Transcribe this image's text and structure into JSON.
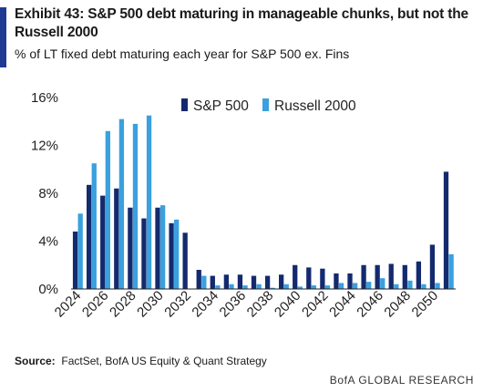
{
  "header": {
    "title": "Exhibit 43: S&P 500 debt maturing in manageable chunks, but not the Russell 2000",
    "subtitle": "% of LT fixed debt maturing each year for S&P 500 ex. Fins"
  },
  "footer": {
    "source_label": "Source:",
    "source_text": "FactSet, BofA US Equity & Quant Strategy",
    "brand": "BofA GLOBAL RESEARCH"
  },
  "colors": {
    "sp500": "#142a6e",
    "russell": "#3aa0de",
    "accent": "#1f3a93"
  },
  "chart_data": {
    "type": "bar",
    "categories": [
      "2024",
      "2025",
      "2026",
      "2027",
      "2028",
      "2029",
      "2030",
      "2031",
      "2032",
      "2033",
      "2034",
      "2035",
      "2036",
      "2037",
      "2038",
      "2039",
      "2040",
      "2041",
      "2042",
      "2043",
      "2044",
      "2045",
      "2046",
      "2047",
      "2048",
      "2049",
      "2050",
      "2051"
    ],
    "x_tick_labels": [
      "2024",
      "2026",
      "2028",
      "2030",
      "2032",
      "2034",
      "2036",
      "2038",
      "2040",
      "2042",
      "2044",
      "2046",
      "2048",
      "2050"
    ],
    "series": [
      {
        "name": "S&P 500",
        "color": "#142a6e",
        "values": [
          4.8,
          8.7,
          7.8,
          8.4,
          6.8,
          5.9,
          6.8,
          5.5,
          4.7,
          1.6,
          1.1,
          1.2,
          1.2,
          1.1,
          1.1,
          1.2,
          2.0,
          1.8,
          1.7,
          1.3,
          1.3,
          2.0,
          2.0,
          2.1,
          2.0,
          2.3,
          3.7,
          9.8
        ]
      },
      {
        "name": "Russell 2000",
        "color": "#3aa0de",
        "values": [
          6.3,
          10.5,
          13.2,
          14.2,
          13.8,
          14.5,
          7.0,
          5.8,
          0.0,
          1.1,
          0.3,
          0.4,
          0.3,
          0.4,
          0.1,
          0.4,
          0.2,
          0.3,
          0.3,
          0.5,
          0.5,
          0.6,
          0.9,
          0.4,
          0.7,
          0.4,
          0.5,
          2.9
        ]
      }
    ],
    "y_ticks": [
      0,
      4,
      8,
      12,
      16
    ],
    "y_tick_format": "%",
    "ylim": [
      0,
      16
    ],
    "legend": "top-right",
    "grid": false
  }
}
